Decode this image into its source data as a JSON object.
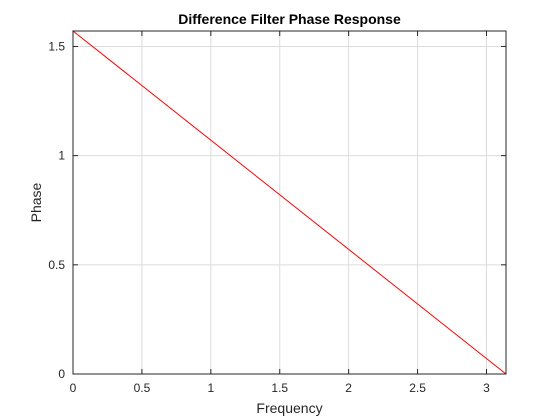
{
  "chart_data": {
    "type": "line",
    "title": "Difference Filter Phase Response",
    "xlabel": "Frequency",
    "ylabel": "Phase",
    "xlim": [
      0,
      3.1416
    ],
    "ylim": [
      0,
      1.5708
    ],
    "grid": true,
    "box": true,
    "x_ticks": [
      0,
      0.5,
      1,
      1.5,
      2,
      2.5,
      3
    ],
    "x_tick_labels": [
      "0",
      "0.5",
      "1",
      "1.5",
      "2",
      "2.5",
      "3"
    ],
    "y_ticks": [
      0,
      0.5,
      1,
      1.5
    ],
    "y_tick_labels": [
      "0",
      "0.5",
      "1",
      "1.5"
    ],
    "series": [
      {
        "color": "#ff0000",
        "x": [
          0,
          0,
          3.1416
        ],
        "y": [
          0,
          1.5708,
          0
        ]
      }
    ]
  }
}
